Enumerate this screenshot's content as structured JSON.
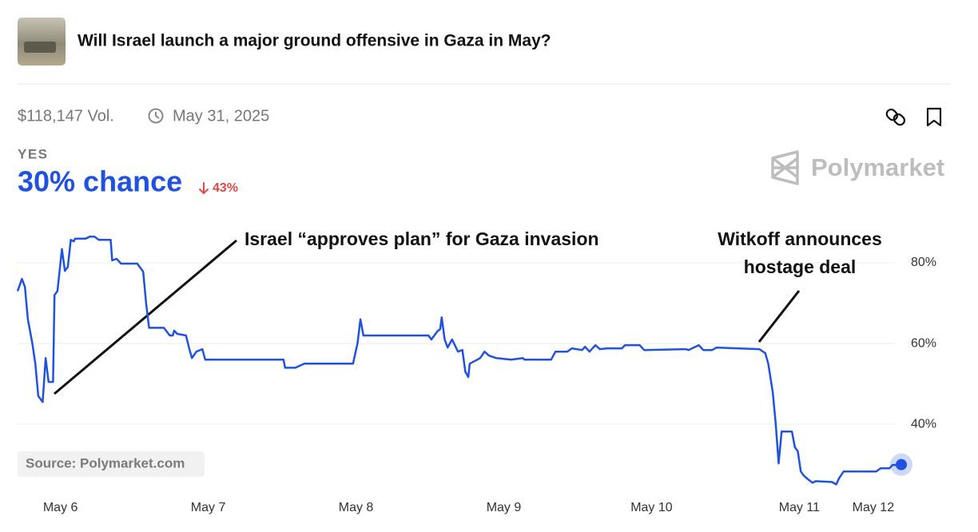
{
  "chart_data": {
    "type": "line",
    "title": "Will Israel launch a major ground offensive in Gaza in May?",
    "volume": "$118,147 Vol.",
    "end_date": "May 31, 2025",
    "outcome": "YES",
    "chance": "30% chance",
    "change": "43%",
    "brand": "Polymarket",
    "source": "Source: Polymarket.com",
    "annotations": [
      [
        "Israel “approves plan” for Gaza invasion"
      ],
      [
        "Witkoff announces",
        "hostage deal"
      ]
    ],
    "color": "#1f52e0",
    "change_color": "#e04848",
    "grid": true,
    "xlim": [
      -0.29,
      5.69
    ],
    "xticks": [
      {
        "value": 0,
        "label": "May 6"
      },
      {
        "value": 1,
        "label": "May 7"
      },
      {
        "value": 2,
        "label": "May 8"
      },
      {
        "value": 3,
        "label": "May 9"
      },
      {
        "value": 4,
        "label": "May 10"
      },
      {
        "value": 5,
        "label": "May 11"
      },
      {
        "value": 5.5,
        "label": "May 12"
      }
    ],
    "ylim": [
      23.4,
      89.7
    ],
    "yticks": [
      {
        "value": 40,
        "label": "40%"
      },
      {
        "value": 60,
        "label": "60%"
      },
      {
        "value": 80,
        "label": "80%"
      }
    ],
    "x": [
      -0.29,
      -0.26,
      -0.24,
      -0.22,
      -0.19,
      -0.17,
      -0.15,
      -0.12,
      -0.1,
      -0.08,
      -0.05,
      -0.04,
      -0.02,
      0.01,
      0.03,
      0.05,
      0.07,
      0.09,
      0.1,
      0.17,
      0.2,
      0.23,
      0.26,
      0.34,
      0.35,
      0.38,
      0.41,
      0.52,
      0.56,
      0.58,
      0.6,
      0.7,
      0.74,
      0.76,
      0.77,
      0.79,
      0.85,
      0.87,
      0.89,
      0.92,
      0.96,
      0.98,
      1.51,
      1.52,
      1.59,
      1.65,
      1.98,
      2.01,
      2.03,
      2.05,
      2.49,
      2.51,
      2.55,
      2.57,
      2.58,
      2.6,
      2.62,
      2.65,
      2.69,
      2.72,
      2.74,
      2.76,
      2.77,
      2.84,
      2.87,
      2.9,
      2.95,
      3.05,
      3.13,
      3.14,
      3.32,
      3.35,
      3.43,
      3.46,
      3.53,
      3.55,
      3.58,
      3.62,
      3.65,
      3.7,
      3.8,
      3.82,
      3.92,
      3.95,
      4.23,
      4.25,
      4.32,
      4.35,
      4.41,
      4.44,
      4.73,
      4.77,
      4.79,
      4.82,
      4.84,
      4.86,
      4.88,
      4.95,
      4.97,
      4.99,
      5.01,
      5.03,
      5.06,
      5.09,
      5.11,
      5.22,
      5.25,
      5.27,
      5.3,
      5.52,
      5.55,
      5.61,
      5.63,
      5.69
    ],
    "values": [
      73,
      76,
      74,
      66,
      60,
      55,
      47,
      45.5,
      56.4,
      50.5,
      50.5,
      72,
      73,
      83.4,
      78,
      79,
      85.7,
      85.3,
      86,
      86,
      86.5,
      86.5,
      85.7,
      85.7,
      80.6,
      81,
      79.8,
      79.8,
      77.8,
      69.9,
      63.9,
      63.9,
      62,
      62,
      63.2,
      62.4,
      62,
      59,
      56.4,
      58,
      58.6,
      56,
      56,
      54,
      54,
      55,
      55,
      60,
      66,
      62,
      62,
      61,
      63,
      63.6,
      66.5,
      61,
      59,
      61,
      58,
      58.4,
      53,
      51.7,
      55,
      56.4,
      58,
      57,
      56.4,
      56,
      56.4,
      56,
      56,
      58,
      58,
      58.8,
      58.4,
      59.2,
      58,
      59.6,
      58.6,
      58.8,
      58.8,
      59.6,
      59.6,
      58.4,
      58.6,
      58.4,
      59.6,
      58.4,
      58.4,
      59,
      58.6,
      57.6,
      55,
      48,
      40.2,
      30.3,
      38.2,
      38.2,
      34.3,
      33.3,
      28.3,
      27.3,
      26.3,
      25.5,
      25.9,
      25.7,
      25.1,
      26.7,
      28.3,
      28.3,
      29.1,
      29.1,
      29.9,
      30
    ]
  }
}
